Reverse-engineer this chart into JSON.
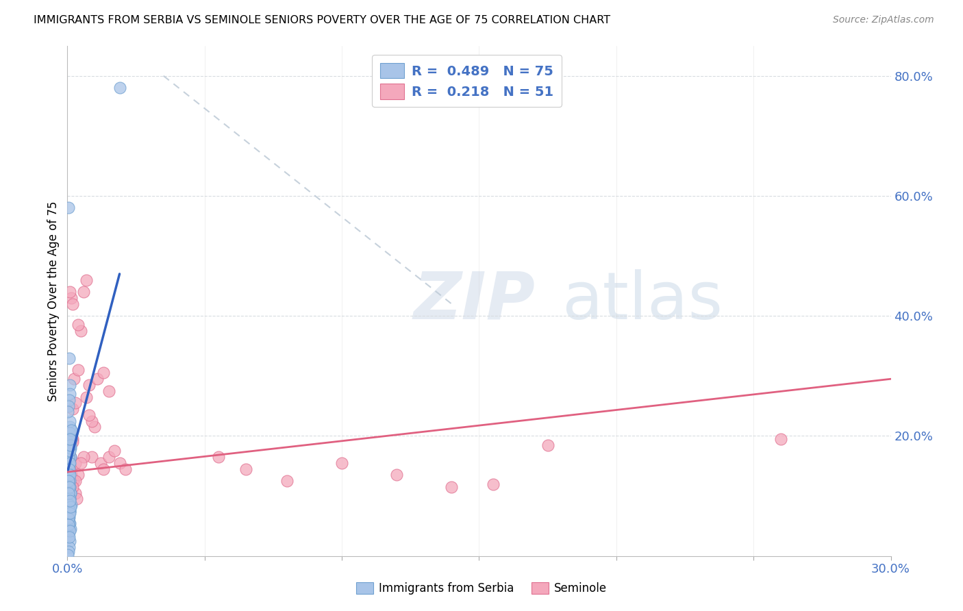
{
  "title": "IMMIGRANTS FROM SERBIA VS SEMINOLE SENIORS POVERTY OVER THE AGE OF 75 CORRELATION CHART",
  "source": "Source: ZipAtlas.com",
  "ylabel": "Seniors Poverty Over the Age of 75",
  "xlim": [
    0.0,
    0.3
  ],
  "ylim": [
    0.0,
    0.85
  ],
  "serbia_color": "#a8c4e8",
  "serbia_edge": "#6fa0d0",
  "seminole_color": "#f4a8bc",
  "seminole_edge": "#e07090",
  "serbia_line_color": "#3060c0",
  "seminole_line_color": "#e06080",
  "dashed_line_color": "#c0ccd8",
  "grid_color": "#d8dce0",
  "tick_color": "#4472c4",
  "serbia_R": 0.489,
  "serbia_N": 75,
  "seminole_R": 0.218,
  "seminole_N": 51,
  "serbia_x": [
    0.0005,
    0.001,
    0.0008,
    0.0012,
    0.0015,
    0.0006,
    0.0003,
    0.0009,
    0.0011,
    0.0004,
    0.0007,
    0.001,
    0.0013,
    0.0002,
    0.0006,
    0.0008,
    0.0011,
    0.0005,
    0.0009,
    0.001,
    0.0007,
    0.0003,
    0.0008,
    0.0012,
    0.0006,
    0.0004,
    0.0007,
    0.0005,
    0.0009,
    0.0011,
    0.001,
    0.0006,
    0.0008,
    0.0003,
    0.0007,
    0.0005,
    0.0009,
    0.0006,
    0.0008,
    0.0004,
    0.0007,
    0.0005,
    0.001,
    0.0008,
    0.0006,
    0.0004,
    0.0002,
    0.0009,
    0.0007,
    0.0005,
    0.0003,
    0.0008,
    0.0006,
    0.0004,
    0.0002,
    0.0007,
    0.0005,
    0.0003,
    0.0009,
    0.0006,
    0.0004,
    0.0007,
    0.0011,
    0.0013,
    0.0008,
    0.001,
    0.0012,
    0.0009,
    0.0014,
    0.0011,
    0.0009,
    0.001,
    0.0012,
    0.0008,
    0.019
  ],
  "serbia_y": [
    0.175,
    0.185,
    0.165,
    0.195,
    0.21,
    0.14,
    0.11,
    0.125,
    0.105,
    0.135,
    0.155,
    0.095,
    0.085,
    0.075,
    0.065,
    0.055,
    0.045,
    0.205,
    0.215,
    0.225,
    0.19,
    0.175,
    0.18,
    0.165,
    0.155,
    0.145,
    0.135,
    0.125,
    0.115,
    0.105,
    0.095,
    0.085,
    0.075,
    0.065,
    0.175,
    0.165,
    0.155,
    0.145,
    0.135,
    0.125,
    0.115,
    0.105,
    0.285,
    0.27,
    0.26,
    0.25,
    0.24,
    0.075,
    0.055,
    0.045,
    0.035,
    0.025,
    0.015,
    0.008,
    0.002,
    0.072,
    0.062,
    0.052,
    0.042,
    0.032,
    0.58,
    0.33,
    0.18,
    0.195,
    0.185,
    0.205,
    0.195,
    0.175,
    0.21,
    0.185,
    0.195,
    0.072,
    0.082,
    0.092,
    0.78
  ],
  "seminole_x": [
    0.001,
    0.0018,
    0.0012,
    0.002,
    0.0028,
    0.0009,
    0.0015,
    0.0022,
    0.0011,
    0.003,
    0.0035,
    0.0013,
    0.0008,
    0.002,
    0.0025,
    0.004,
    0.0018,
    0.003,
    0.0048,
    0.0038,
    0.006,
    0.007,
    0.009,
    0.012,
    0.013,
    0.015,
    0.008,
    0.007,
    0.006,
    0.005,
    0.004,
    0.003,
    0.002,
    0.01,
    0.009,
    0.008,
    0.011,
    0.013,
    0.015,
    0.017,
    0.019,
    0.021,
    0.055,
    0.065,
    0.08,
    0.1,
    0.12,
    0.14,
    0.155,
    0.26,
    0.175
  ],
  "seminole_y": [
    0.18,
    0.195,
    0.165,
    0.19,
    0.155,
    0.145,
    0.135,
    0.125,
    0.115,
    0.105,
    0.095,
    0.43,
    0.44,
    0.42,
    0.295,
    0.31,
    0.245,
    0.255,
    0.375,
    0.385,
    0.44,
    0.46,
    0.165,
    0.155,
    0.145,
    0.275,
    0.285,
    0.265,
    0.165,
    0.155,
    0.135,
    0.125,
    0.115,
    0.215,
    0.225,
    0.235,
    0.295,
    0.305,
    0.165,
    0.175,
    0.155,
    0.145,
    0.165,
    0.145,
    0.125,
    0.155,
    0.135,
    0.115,
    0.12,
    0.195,
    0.185
  ]
}
